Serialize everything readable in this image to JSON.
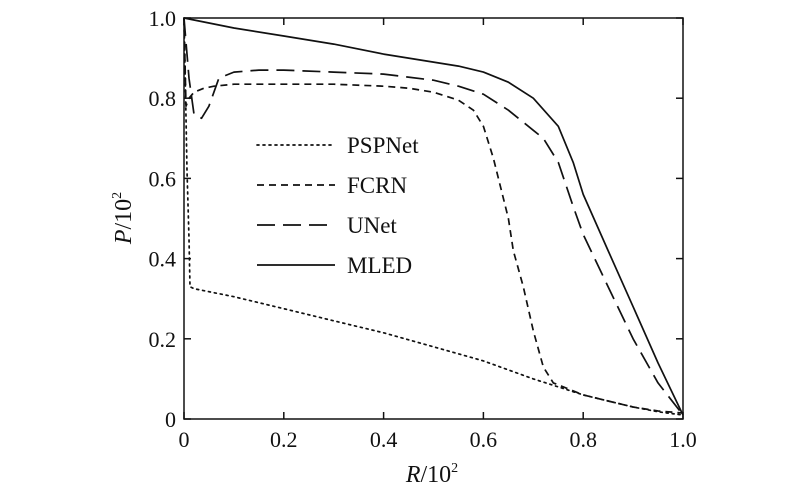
{
  "chart_data": {
    "type": "line",
    "title": "",
    "xlabel": {
      "italic": "R",
      "rest": "/10",
      "sup": "2"
    },
    "ylabel": {
      "italic": "P",
      "rest": "/10",
      "sup": "2"
    },
    "xlim": [
      0,
      1.0
    ],
    "ylim": [
      0,
      1.0
    ],
    "x_ticks": [
      {
        "value": 0,
        "label": "0"
      },
      {
        "value": 0.2,
        "label": "0.2"
      },
      {
        "value": 0.4,
        "label": "0.4"
      },
      {
        "value": 0.6,
        "label": "0.6"
      },
      {
        "value": 0.8,
        "label": "0.8"
      },
      {
        "value": 1.0,
        "label": "1.0"
      }
    ],
    "y_ticks": [
      {
        "value": 0,
        "label": "0"
      },
      {
        "value": 0.2,
        "label": "0.2"
      },
      {
        "value": 0.4,
        "label": "0.4"
      },
      {
        "value": 0.6,
        "label": "0.6"
      },
      {
        "value": 0.8,
        "label": "0.8"
      },
      {
        "value": 1.0,
        "label": "1.0"
      }
    ],
    "grid": false,
    "legend_position": "center-left",
    "series": [
      {
        "name": "PSPNet",
        "style": "dotted",
        "color": "#111111",
        "points": [
          [
            0.0,
            1.0
          ],
          [
            0.003,
            0.82
          ],
          [
            0.006,
            0.62
          ],
          [
            0.01,
            0.45
          ],
          [
            0.012,
            0.33
          ],
          [
            0.02,
            0.325
          ],
          [
            0.04,
            0.32
          ],
          [
            0.1,
            0.305
          ],
          [
            0.2,
            0.275
          ],
          [
            0.3,
            0.245
          ],
          [
            0.4,
            0.215
          ],
          [
            0.5,
            0.18
          ],
          [
            0.6,
            0.145
          ],
          [
            0.7,
            0.1
          ],
          [
            0.75,
            0.08
          ],
          [
            0.8,
            0.06
          ],
          [
            0.85,
            0.045
          ],
          [
            0.9,
            0.03
          ],
          [
            0.95,
            0.018
          ],
          [
            1.0,
            0.01
          ]
        ]
      },
      {
        "name": "FCRN",
        "style": "short-dash",
        "color": "#111111",
        "points": [
          [
            0.0,
            1.0
          ],
          [
            0.004,
            0.78
          ],
          [
            0.01,
            0.8
          ],
          [
            0.02,
            0.815
          ],
          [
            0.04,
            0.825
          ],
          [
            0.06,
            0.83
          ],
          [
            0.1,
            0.835
          ],
          [
            0.2,
            0.835
          ],
          [
            0.3,
            0.835
          ],
          [
            0.4,
            0.83
          ],
          [
            0.45,
            0.825
          ],
          [
            0.5,
            0.815
          ],
          [
            0.55,
            0.795
          ],
          [
            0.58,
            0.77
          ],
          [
            0.6,
            0.73
          ],
          [
            0.62,
            0.65
          ],
          [
            0.64,
            0.55
          ],
          [
            0.65,
            0.5
          ],
          [
            0.66,
            0.42
          ],
          [
            0.68,
            0.33
          ],
          [
            0.7,
            0.22
          ],
          [
            0.72,
            0.13
          ],
          [
            0.74,
            0.09
          ],
          [
            0.8,
            0.06
          ],
          [
            0.85,
            0.045
          ],
          [
            0.9,
            0.03
          ],
          [
            0.95,
            0.02
          ],
          [
            1.0,
            0.015
          ]
        ]
      },
      {
        "name": "UNet",
        "style": "long-dash",
        "color": "#111111",
        "points": [
          [
            0.0,
            1.0
          ],
          [
            0.01,
            0.85
          ],
          [
            0.02,
            0.76
          ],
          [
            0.035,
            0.75
          ],
          [
            0.05,
            0.78
          ],
          [
            0.07,
            0.85
          ],
          [
            0.1,
            0.865
          ],
          [
            0.15,
            0.87
          ],
          [
            0.2,
            0.87
          ],
          [
            0.3,
            0.865
          ],
          [
            0.4,
            0.86
          ],
          [
            0.5,
            0.845
          ],
          [
            0.55,
            0.83
          ],
          [
            0.6,
            0.81
          ],
          [
            0.65,
            0.77
          ],
          [
            0.7,
            0.72
          ],
          [
            0.72,
            0.7
          ],
          [
            0.75,
            0.64
          ],
          [
            0.78,
            0.53
          ],
          [
            0.8,
            0.46
          ],
          [
            0.85,
            0.33
          ],
          [
            0.9,
            0.2
          ],
          [
            0.95,
            0.09
          ],
          [
            1.0,
            0.01
          ]
        ]
      },
      {
        "name": "MLED",
        "style": "solid",
        "color": "#111111",
        "points": [
          [
            0.0,
            1.0
          ],
          [
            0.1,
            0.975
          ],
          [
            0.2,
            0.955
          ],
          [
            0.3,
            0.935
          ],
          [
            0.4,
            0.91
          ],
          [
            0.5,
            0.89
          ],
          [
            0.55,
            0.88
          ],
          [
            0.6,
            0.865
          ],
          [
            0.65,
            0.84
          ],
          [
            0.7,
            0.8
          ],
          [
            0.75,
            0.73
          ],
          [
            0.78,
            0.64
          ],
          [
            0.8,
            0.56
          ],
          [
            0.85,
            0.42
          ],
          [
            0.9,
            0.28
          ],
          [
            0.95,
            0.14
          ],
          [
            1.0,
            0.01
          ]
        ]
      }
    ]
  }
}
